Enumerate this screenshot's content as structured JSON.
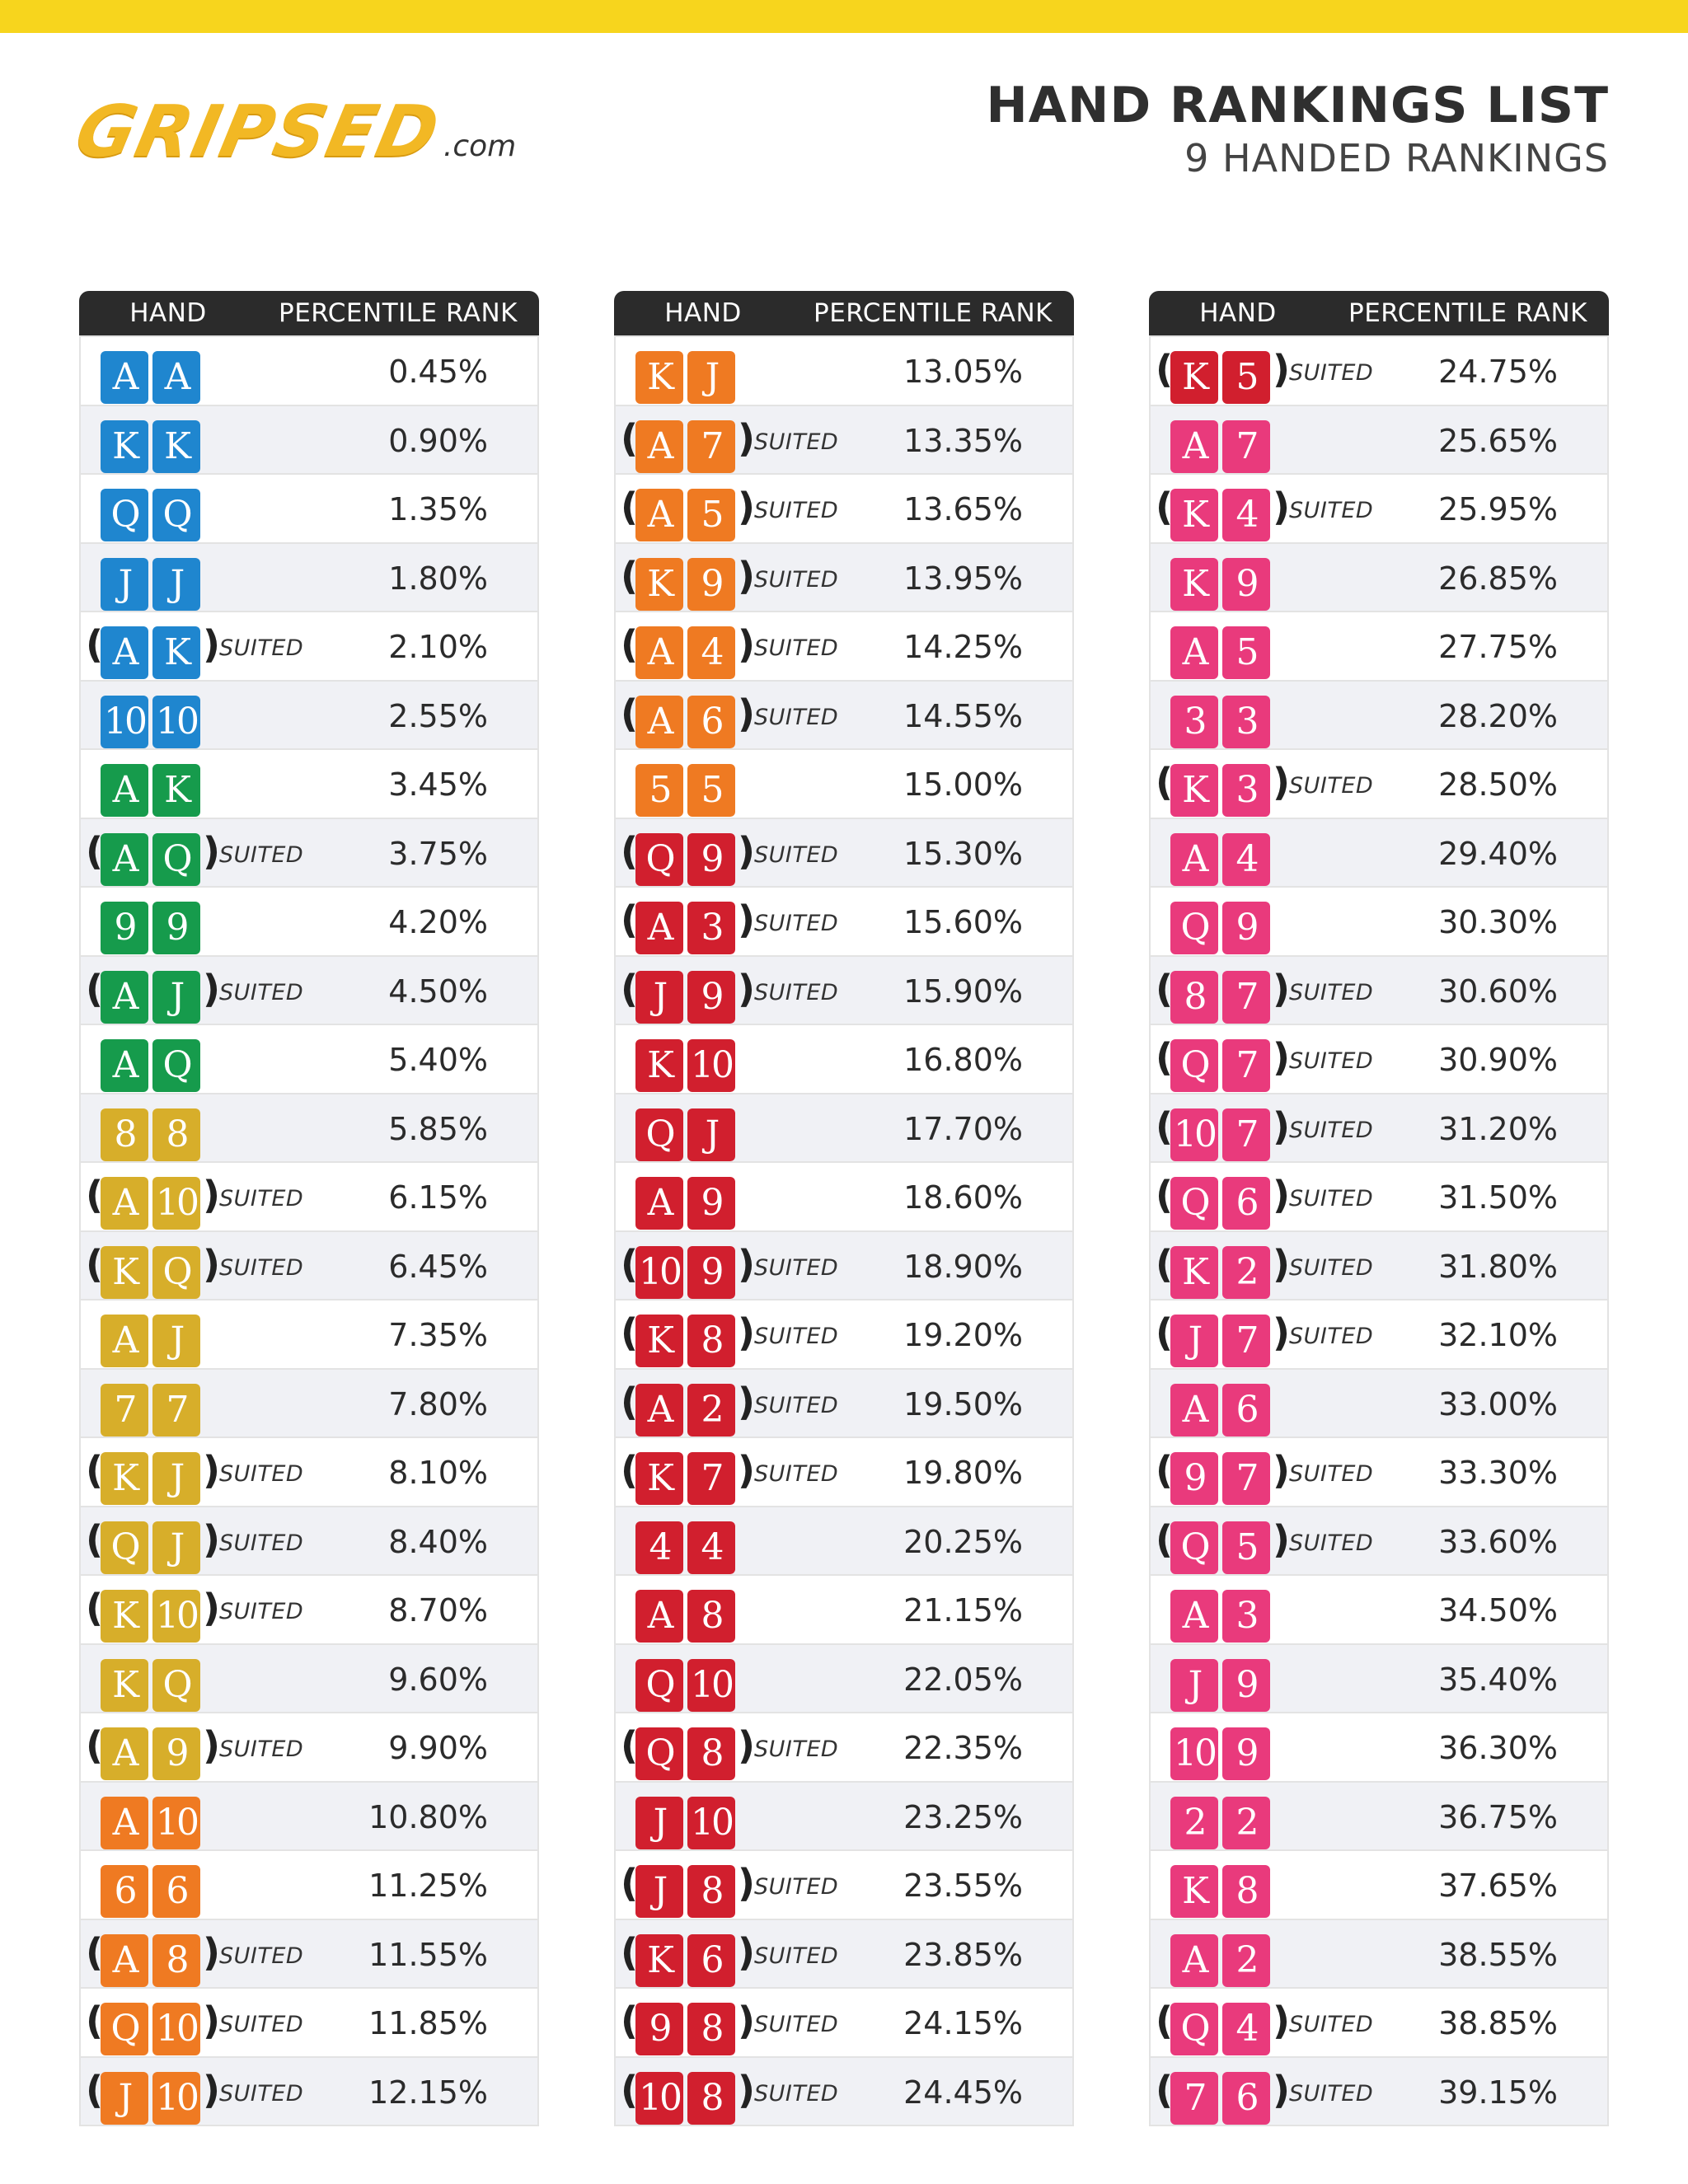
{
  "header": {
    "logo_word": "GRIPSED",
    "logo_suffix": ".com",
    "title": "HAND RANKINGS LIST",
    "subtitle": "9 HANDED RANKINGS"
  },
  "table_headers": {
    "hand": "HAND",
    "rank": "PERCENTILE RANK"
  },
  "suited_label": "SUITED",
  "colors": {
    "top_bar": "#f7d51d",
    "blue": "#1f86cf",
    "green": "#169b4c",
    "gold": "#d7ae2a",
    "orange": "#ef7a22",
    "red": "#d11f2e",
    "pink": "#e93a7c"
  },
  "columns": [
    {
      "rows": [
        {
          "cards": [
            "A",
            "A"
          ],
          "suited": false,
          "rank": "0.45%",
          "color": "blue"
        },
        {
          "cards": [
            "K",
            "K"
          ],
          "suited": false,
          "rank": "0.90%",
          "color": "blue"
        },
        {
          "cards": [
            "Q",
            "Q"
          ],
          "suited": false,
          "rank": "1.35%",
          "color": "blue"
        },
        {
          "cards": [
            "J",
            "J"
          ],
          "suited": false,
          "rank": "1.80%",
          "color": "blue"
        },
        {
          "cards": [
            "A",
            "K"
          ],
          "suited": true,
          "rank": "2.10%",
          "color": "blue"
        },
        {
          "cards": [
            "10",
            "10"
          ],
          "suited": false,
          "rank": "2.55%",
          "color": "blue"
        },
        {
          "cards": [
            "A",
            "K"
          ],
          "suited": false,
          "rank": "3.45%",
          "color": "green"
        },
        {
          "cards": [
            "A",
            "Q"
          ],
          "suited": true,
          "rank": "3.75%",
          "color": "green"
        },
        {
          "cards": [
            "9",
            "9"
          ],
          "suited": false,
          "rank": "4.20%",
          "color": "green"
        },
        {
          "cards": [
            "A",
            "J"
          ],
          "suited": true,
          "rank": "4.50%",
          "color": "green"
        },
        {
          "cards": [
            "A",
            "Q"
          ],
          "suited": false,
          "rank": "5.40%",
          "color": "green"
        },
        {
          "cards": [
            "8",
            "8"
          ],
          "suited": false,
          "rank": "5.85%",
          "color": "gold"
        },
        {
          "cards": [
            "A",
            "10"
          ],
          "suited": true,
          "rank": "6.15%",
          "color": "gold"
        },
        {
          "cards": [
            "K",
            "Q"
          ],
          "suited": true,
          "rank": "6.45%",
          "color": "gold"
        },
        {
          "cards": [
            "A",
            "J"
          ],
          "suited": false,
          "rank": "7.35%",
          "color": "gold"
        },
        {
          "cards": [
            "7",
            "7"
          ],
          "suited": false,
          "rank": "7.80%",
          "color": "gold"
        },
        {
          "cards": [
            "K",
            "J"
          ],
          "suited": true,
          "rank": "8.10%",
          "color": "gold"
        },
        {
          "cards": [
            "Q",
            "J"
          ],
          "suited": true,
          "rank": "8.40%",
          "color": "gold"
        },
        {
          "cards": [
            "K",
            "10"
          ],
          "suited": true,
          "rank": "8.70%",
          "color": "gold"
        },
        {
          "cards": [
            "K",
            "Q"
          ],
          "suited": false,
          "rank": "9.60%",
          "color": "gold"
        },
        {
          "cards": [
            "A",
            "9"
          ],
          "suited": true,
          "rank": "9.90%",
          "color": "gold"
        },
        {
          "cards": [
            "A",
            "10"
          ],
          "suited": false,
          "rank": "10.80%",
          "color": "orange"
        },
        {
          "cards": [
            "6",
            "6"
          ],
          "suited": false,
          "rank": "11.25%",
          "color": "orange"
        },
        {
          "cards": [
            "A",
            "8"
          ],
          "suited": true,
          "rank": "11.55%",
          "color": "orange"
        },
        {
          "cards": [
            "Q",
            "10"
          ],
          "suited": true,
          "rank": "11.85%",
          "color": "orange"
        },
        {
          "cards": [
            "J",
            "10"
          ],
          "suited": true,
          "rank": "12.15%",
          "color": "orange"
        }
      ]
    },
    {
      "rows": [
        {
          "cards": [
            "K",
            "J"
          ],
          "suited": false,
          "rank": "13.05%",
          "color": "orange"
        },
        {
          "cards": [
            "A",
            "7"
          ],
          "suited": true,
          "rank": "13.35%",
          "color": "orange"
        },
        {
          "cards": [
            "A",
            "5"
          ],
          "suited": true,
          "rank": "13.65%",
          "color": "orange"
        },
        {
          "cards": [
            "K",
            "9"
          ],
          "suited": true,
          "rank": "13.95%",
          "color": "orange"
        },
        {
          "cards": [
            "A",
            "4"
          ],
          "suited": true,
          "rank": "14.25%",
          "color": "orange"
        },
        {
          "cards": [
            "A",
            "6"
          ],
          "suited": true,
          "rank": "14.55%",
          "color": "orange"
        },
        {
          "cards": [
            "5",
            "5"
          ],
          "suited": false,
          "rank": "15.00%",
          "color": "orange"
        },
        {
          "cards": [
            "Q",
            "9"
          ],
          "suited": true,
          "rank": "15.30%",
          "color": "red"
        },
        {
          "cards": [
            "A",
            "3"
          ],
          "suited": true,
          "rank": "15.60%",
          "color": "red"
        },
        {
          "cards": [
            "J",
            "9"
          ],
          "suited": true,
          "rank": "15.90%",
          "color": "red"
        },
        {
          "cards": [
            "K",
            "10"
          ],
          "suited": false,
          "rank": "16.80%",
          "color": "red"
        },
        {
          "cards": [
            "Q",
            "J"
          ],
          "suited": false,
          "rank": "17.70%",
          "color": "red"
        },
        {
          "cards": [
            "A",
            "9"
          ],
          "suited": false,
          "rank": "18.60%",
          "color": "red"
        },
        {
          "cards": [
            "10",
            "9"
          ],
          "suited": true,
          "rank": "18.90%",
          "color": "red"
        },
        {
          "cards": [
            "K",
            "8"
          ],
          "suited": true,
          "rank": "19.20%",
          "color": "red"
        },
        {
          "cards": [
            "A",
            "2"
          ],
          "suited": true,
          "rank": "19.50%",
          "color": "red"
        },
        {
          "cards": [
            "K",
            "7"
          ],
          "suited": true,
          "rank": "19.80%",
          "color": "red"
        },
        {
          "cards": [
            "4",
            "4"
          ],
          "suited": false,
          "rank": "20.25%",
          "color": "red"
        },
        {
          "cards": [
            "A",
            "8"
          ],
          "suited": false,
          "rank": "21.15%",
          "color": "red"
        },
        {
          "cards": [
            "Q",
            "10"
          ],
          "suited": false,
          "rank": "22.05%",
          "color": "red"
        },
        {
          "cards": [
            "Q",
            "8"
          ],
          "suited": true,
          "rank": "22.35%",
          "color": "red"
        },
        {
          "cards": [
            "J",
            "10"
          ],
          "suited": false,
          "rank": "23.25%",
          "color": "red"
        },
        {
          "cards": [
            "J",
            "8"
          ],
          "suited": true,
          "rank": "23.55%",
          "color": "red"
        },
        {
          "cards": [
            "K",
            "6"
          ],
          "suited": true,
          "rank": "23.85%",
          "color": "red"
        },
        {
          "cards": [
            "9",
            "8"
          ],
          "suited": true,
          "rank": "24.15%",
          "color": "red"
        },
        {
          "cards": [
            "10",
            "8"
          ],
          "suited": true,
          "rank": "24.45%",
          "color": "red"
        }
      ]
    },
    {
      "rows": [
        {
          "cards": [
            "K",
            "5"
          ],
          "suited": true,
          "rank": "24.75%",
          "color": "red"
        },
        {
          "cards": [
            "A",
            "7"
          ],
          "suited": false,
          "rank": "25.65%",
          "color": "pink"
        },
        {
          "cards": [
            "K",
            "4"
          ],
          "suited": true,
          "rank": "25.95%",
          "color": "pink"
        },
        {
          "cards": [
            "K",
            "9"
          ],
          "suited": false,
          "rank": "26.85%",
          "color": "pink"
        },
        {
          "cards": [
            "A",
            "5"
          ],
          "suited": false,
          "rank": "27.75%",
          "color": "pink"
        },
        {
          "cards": [
            "3",
            "3"
          ],
          "suited": false,
          "rank": "28.20%",
          "color": "pink"
        },
        {
          "cards": [
            "K",
            "3"
          ],
          "suited": true,
          "rank": "28.50%",
          "color": "pink"
        },
        {
          "cards": [
            "A",
            "4"
          ],
          "suited": false,
          "rank": "29.40%",
          "color": "pink"
        },
        {
          "cards": [
            "Q",
            "9"
          ],
          "suited": false,
          "rank": "30.30%",
          "color": "pink"
        },
        {
          "cards": [
            "8",
            "7"
          ],
          "suited": true,
          "rank": "30.60%",
          "color": "pink"
        },
        {
          "cards": [
            "Q",
            "7"
          ],
          "suited": true,
          "rank": "30.90%",
          "color": "pink"
        },
        {
          "cards": [
            "10",
            "7"
          ],
          "suited": true,
          "rank": "31.20%",
          "color": "pink"
        },
        {
          "cards": [
            "Q",
            "6"
          ],
          "suited": true,
          "rank": "31.50%",
          "color": "pink"
        },
        {
          "cards": [
            "K",
            "2"
          ],
          "suited": true,
          "rank": "31.80%",
          "color": "pink"
        },
        {
          "cards": [
            "J",
            "7"
          ],
          "suited": true,
          "rank": "32.10%",
          "color": "pink"
        },
        {
          "cards": [
            "A",
            "6"
          ],
          "suited": false,
          "rank": "33.00%",
          "color": "pink"
        },
        {
          "cards": [
            "9",
            "7"
          ],
          "suited": true,
          "rank": "33.30%",
          "color": "pink"
        },
        {
          "cards": [
            "Q",
            "5"
          ],
          "suited": true,
          "rank": "33.60%",
          "color": "pink"
        },
        {
          "cards": [
            "A",
            "3"
          ],
          "suited": false,
          "rank": "34.50%",
          "color": "pink"
        },
        {
          "cards": [
            "J",
            "9"
          ],
          "suited": false,
          "rank": "35.40%",
          "color": "pink"
        },
        {
          "cards": [
            "10",
            "9"
          ],
          "suited": false,
          "rank": "36.30%",
          "color": "pink"
        },
        {
          "cards": [
            "2",
            "2"
          ],
          "suited": false,
          "rank": "36.75%",
          "color": "pink"
        },
        {
          "cards": [
            "K",
            "8"
          ],
          "suited": false,
          "rank": "37.65%",
          "color": "pink"
        },
        {
          "cards": [
            "A",
            "2"
          ],
          "suited": false,
          "rank": "38.55%",
          "color": "pink"
        },
        {
          "cards": [
            "Q",
            "4"
          ],
          "suited": true,
          "rank": "38.85%",
          "color": "pink"
        },
        {
          "cards": [
            "7",
            "6"
          ],
          "suited": true,
          "rank": "39.15%",
          "color": "pink"
        }
      ]
    }
  ]
}
